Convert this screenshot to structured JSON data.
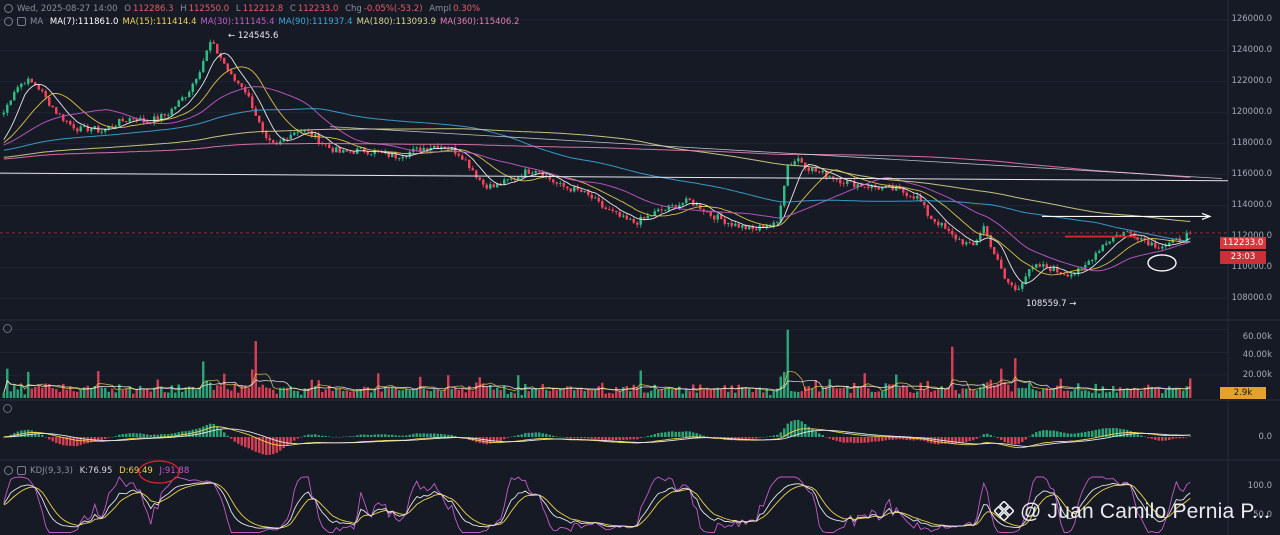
{
  "header": {
    "date": "Wed, 2025-08-27 14:00",
    "open_label": "O",
    "open": "112286.3",
    "high_label": "H",
    "high": "112550.0",
    "low_label": "L",
    "low": "112212.8",
    "close_label": "C",
    "close": "112233.0",
    "chg_label": "Chg",
    "chg": "-0.05%(-53.2)",
    "ampl_label": "Ampl",
    "ampl": "0.30%"
  },
  "ma_header": {
    "label": "MA",
    "items": [
      {
        "text": "MA(7):111861.0",
        "color": "#ffffff"
      },
      {
        "text": "MA(15):111414.4",
        "color": "#f0d34a"
      },
      {
        "text": "MA(30):111145.4",
        "color": "#c35ac9"
      },
      {
        "text": "MA(90):111937.4",
        "color": "#3ba7d9"
      },
      {
        "text": "MA(180):113093.9",
        "color": "#d8d48c"
      },
      {
        "text": "MA(360):115406.2",
        "color": "#e87bb5"
      }
    ]
  },
  "kdj_header": {
    "label": "KDJ(9,3,3)",
    "k": "K:76.95",
    "d": "D:69.49",
    "j": "J:91.88"
  },
  "price_axis": [
    "126000.0",
    "124000.0",
    "122000.0",
    "120000.0",
    "118000.0",
    "116000.0",
    "114000.0",
    "112000.0",
    "110000.0",
    "108000.0"
  ],
  "volume_axis": [
    "60.00k",
    "40.00k",
    "20.00k"
  ],
  "macd_axis": [
    "0.0"
  ],
  "kdj_axis": [
    "100.0",
    "50.0"
  ],
  "tags": {
    "last_price": "112233.0",
    "countdown": "23:03",
    "volume": "2.9k"
  },
  "annotations": {
    "high": "124545.6",
    "low": "108559.7"
  },
  "watermark": "@ Juan Camilo Pernia P...",
  "colors": {
    "background": "#161a25",
    "up": "#2ebd85",
    "down": "#f6465d",
    "tag_red": "#e0353f",
    "tag_orange": "#e5a12a",
    "circle": "#ffffff",
    "annot_red": "#d8262c"
  },
  "chart_data": {
    "type": "line",
    "title": "",
    "timeframe": "1h",
    "ylim": [
      107000,
      126500
    ],
    "y_ticks": [
      108000,
      110000,
      112000,
      114000,
      116000,
      118000,
      120000,
      122000,
      124000,
      126000
    ],
    "close_path": [
      120000,
      121500,
      122100,
      121800,
      120800,
      119900,
      119300,
      118900,
      119000,
      118800,
      119200,
      119500,
      119700,
      119400,
      119600,
      119900,
      120600,
      121400,
      122800,
      124545,
      123500,
      122200,
      121700,
      120200,
      118200,
      117800,
      118500,
      118900,
      118700,
      118200,
      117700,
      117400,
      117500,
      117600,
      117450,
      117300,
      117200,
      117400,
      117600,
      117800,
      117900,
      117700,
      117300,
      116400,
      115400,
      115200,
      115500,
      115800,
      116200,
      116400,
      115800,
      115300,
      115100,
      114900,
      114500,
      113900,
      113500,
      113100,
      112900,
      113200,
      113600,
      113800,
      114100,
      114300,
      113900,
      113400,
      113100,
      112800,
      112600,
      112400,
      112800,
      112700,
      116600,
      117050,
      116400,
      116100,
      115900,
      115600,
      115400,
      115300,
      115200,
      115100,
      115000,
      114800,
      114500,
      113300,
      112800,
      112100,
      111700,
      111300,
      112700,
      110900,
      109200,
      108560,
      109600,
      110100,
      110000,
      109700,
      109600,
      109800,
      110700,
      111500,
      112000,
      112300,
      112100,
      111700,
      111400,
      111500,
      111800,
      112233
    ],
    "moving_averages": [
      {
        "name": "MA(7)",
        "last": 111861.0
      },
      {
        "name": "MA(15)",
        "last": 111414.4
      },
      {
        "name": "MA(30)",
        "last": 111145.4
      },
      {
        "name": "MA(90)",
        "last": 111937.4
      },
      {
        "name": "MA(180)",
        "last": 113093.9
      },
      {
        "name": "MA(360)",
        "last": 115406.2
      }
    ],
    "annotations": [
      {
        "label": "124545.6",
        "value": 124545.6,
        "index": 19
      },
      {
        "label": "108559.7",
        "value": 108559.7,
        "index": 93
      }
    ],
    "trendlines": [
      {
        "from": [
          0,
          116100
        ],
        "to": [
          120,
          115600
        ]
      },
      {
        "from": [
          28,
          119000
        ],
        "to": [
          120,
          115700
        ]
      },
      {
        "from": [
          100,
          113300
        ],
        "to": [
          111,
          113300
        ]
      },
      {
        "from": [
          98,
          112000
        ],
        "to": [
          104,
          112000
        ]
      }
    ],
    "volume": {
      "ylim": [
        0,
        65000
      ],
      "spikes": [
        {
          "index": 23,
          "value": 50000
        },
        {
          "index": 72,
          "value": 60000
        },
        {
          "index": 87,
          "value": 45000
        },
        {
          "index": 93,
          "value": 35000
        }
      ],
      "last": 2900
    },
    "macd": {
      "zero_label": "0.0"
    },
    "kdj": {
      "k": 76.95,
      "d": 69.49,
      "j": 91.88,
      "ylim": [
        0,
        110
      ]
    }
  }
}
